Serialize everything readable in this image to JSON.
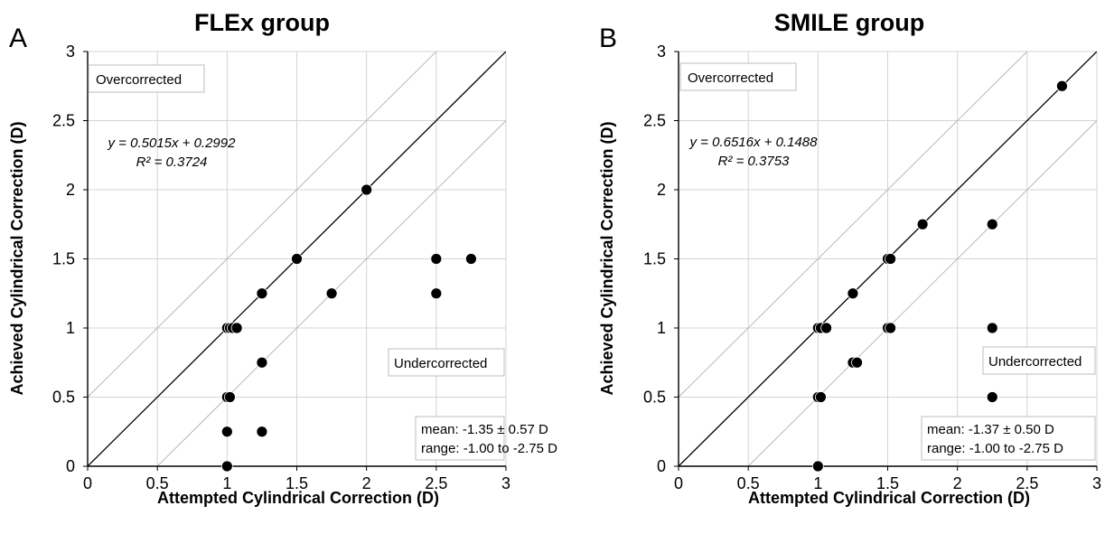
{
  "chart_data": [
    {
      "type": "scatter",
      "panel_label": "A",
      "title": "FLEx group",
      "xlabel": "Attempted Cylindrical Correction (D)",
      "ylabel": "Achieved  Cylindrical Correction (D)",
      "xlim": [
        0,
        3
      ],
      "ylim": [
        0,
        3
      ],
      "xticks": [
        "0",
        "0.5",
        "1",
        "1.5",
        "2",
        "2.5",
        "3"
      ],
      "yticks": [
        "0",
        "0.5",
        "1",
        "1.5",
        "2",
        "2.5",
        "3"
      ],
      "grid": true,
      "reference_lines": [
        "y = x",
        "y = x + 0.5",
        "y = x - 0.5"
      ],
      "equation": "y = 0.5015x + 0.2992",
      "r_squared": "R² = 0.3724",
      "label_over": "Overcorrected",
      "label_under": "Undercorrected",
      "stats": [
        "mean: -1.35 ± 0.57 D",
        "range: -1.00 to -2.75 D"
      ],
      "points": [
        {
          "x": 1.0,
          "y": 1.0
        },
        {
          "x": 1.02,
          "y": 1.0
        },
        {
          "x": 1.04,
          "y": 1.0
        },
        {
          "x": 1.07,
          "y": 1.0
        },
        {
          "x": 1.0,
          "y": 0.5
        },
        {
          "x": 1.02,
          "y": 0.5
        },
        {
          "x": 1.0,
          "y": 0.25
        },
        {
          "x": 1.0,
          "y": 0.0
        },
        {
          "x": 1.25,
          "y": 1.25
        },
        {
          "x": 1.25,
          "y": 0.75
        },
        {
          "x": 1.25,
          "y": 0.25
        },
        {
          "x": 1.5,
          "y": 1.5
        },
        {
          "x": 1.75,
          "y": 1.25
        },
        {
          "x": 2.0,
          "y": 2.0
        },
        {
          "x": 2.5,
          "y": 1.5
        },
        {
          "x": 2.5,
          "y": 1.25
        },
        {
          "x": 2.75,
          "y": 1.5
        }
      ]
    },
    {
      "type": "scatter",
      "panel_label": "B",
      "title": "SMILE group",
      "xlabel": "Attempted Cylindrical Correction (D)",
      "ylabel": "Achieved  Cylindrical Correction (D)",
      "xlim": [
        0,
        3
      ],
      "ylim": [
        0,
        3
      ],
      "xticks": [
        "0",
        "0.5",
        "1",
        "1.5",
        "2",
        "2.5",
        "3"
      ],
      "yticks": [
        "0",
        "0.5",
        "1",
        "1.5",
        "2",
        "2.5",
        "3"
      ],
      "grid": true,
      "reference_lines": [
        "y = x",
        "y = x + 0.5",
        "y = x - 0.5"
      ],
      "equation": "y = 0.6516x + 0.1488",
      "r_squared": "R² = 0.3753",
      "label_over": "Overcorrected",
      "label_under": "Undercorrected",
      "stats": [
        "mean: -1.37 ± 0.50 D",
        "range: -1.00 to -2.75 D"
      ],
      "points": [
        {
          "x": 1.0,
          "y": 1.0
        },
        {
          "x": 1.02,
          "y": 1.0
        },
        {
          "x": 1.06,
          "y": 1.0
        },
        {
          "x": 1.0,
          "y": 0.5
        },
        {
          "x": 1.02,
          "y": 0.5
        },
        {
          "x": 1.0,
          "y": 0.0
        },
        {
          "x": 1.25,
          "y": 1.25
        },
        {
          "x": 1.25,
          "y": 0.75
        },
        {
          "x": 1.28,
          "y": 0.75
        },
        {
          "x": 1.5,
          "y": 1.5
        },
        {
          "x": 1.52,
          "y": 1.5
        },
        {
          "x": 1.5,
          "y": 1.0
        },
        {
          "x": 1.52,
          "y": 1.0
        },
        {
          "x": 1.75,
          "y": 1.75
        },
        {
          "x": 2.25,
          "y": 1.75
        },
        {
          "x": 2.25,
          "y": 1.0
        },
        {
          "x": 2.25,
          "y": 0.5
        },
        {
          "x": 2.75,
          "y": 2.75
        }
      ]
    }
  ]
}
